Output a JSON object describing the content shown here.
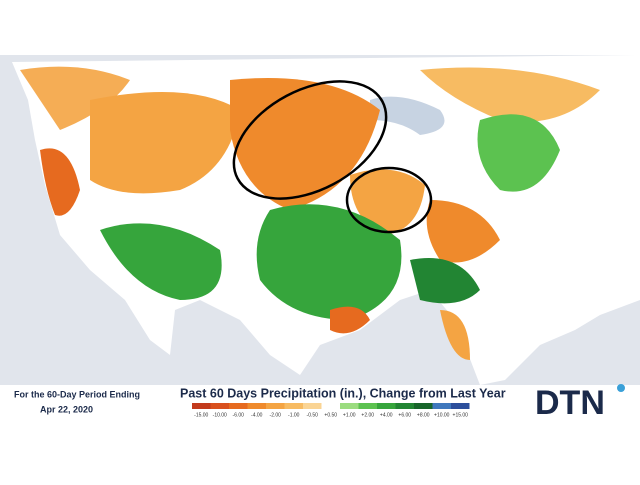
{
  "caption": {
    "line1": "For the 60-Day Period Ending",
    "line2": "Apr 22, 2020"
  },
  "title": "Past 60 Days Precipitation (in.), Change from Last Year",
  "legend": [
    {
      "label": "-15.00",
      "color": "#c23a1c"
    },
    {
      "label": "-10.00",
      "color": "#d9501e"
    },
    {
      "label": "-6.00",
      "color": "#e66a1f"
    },
    {
      "label": "-4.00",
      "color": "#ef8a2c"
    },
    {
      "label": "-2.00",
      "color": "#f4a443"
    },
    {
      "label": "-1.00",
      "color": "#f7bb62"
    },
    {
      "label": "-0.50",
      "color": "#fad494"
    },
    {
      "label": "+0.50",
      "color": "#ffffff"
    },
    {
      "label": "+1.00",
      "color": "#9bdc7f"
    },
    {
      "label": "+2.00",
      "color": "#5cc250"
    },
    {
      "label": "+4.00",
      "color": "#36a53c"
    },
    {
      "label": "+6.00",
      "color": "#228533"
    },
    {
      "label": "+8.00",
      "color": "#17652a"
    },
    {
      "label": "+10.00",
      "color": "#3f78bd"
    },
    {
      "label": "+15.00",
      "color": "#2c4f9c"
    }
  ],
  "logo": "DTN"
}
